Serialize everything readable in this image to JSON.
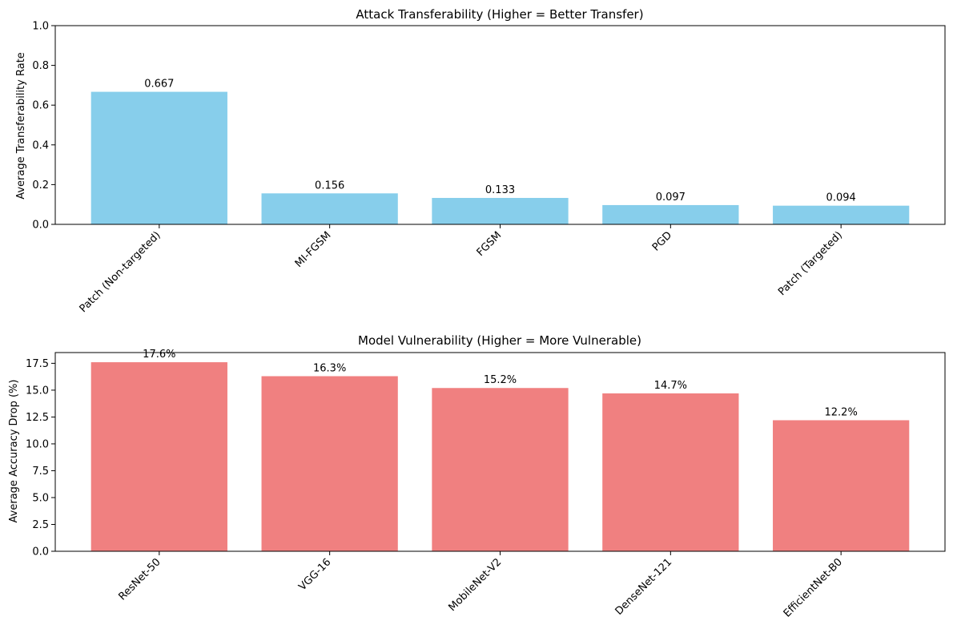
{
  "chart_data": [
    {
      "type": "bar",
      "title": "Attack Transferability (Higher = Better Transfer)",
      "xlabel": "",
      "ylabel": "Average Transferability Rate",
      "categories": [
        "Patch (Non-targeted)",
        "MI-FGSM",
        "FGSM",
        "PGD",
        "Patch (Targeted)"
      ],
      "values": [
        0.667,
        0.156,
        0.133,
        0.097,
        0.094
      ],
      "value_labels": [
        "0.667",
        "0.156",
        "0.133",
        "0.097",
        "0.094"
      ],
      "ylim": [
        0,
        1
      ],
      "yticks": [
        0.0,
        0.2,
        0.4,
        0.6,
        0.8,
        1.0
      ],
      "ytick_labels": [
        "0.0",
        "0.2",
        "0.4",
        "0.6",
        "0.8",
        "1.0"
      ],
      "bar_color": "#87ceeb",
      "grid": false
    },
    {
      "type": "bar",
      "title": "Model Vulnerability (Higher = More Vulnerable)",
      "xlabel": "",
      "ylabel": "Average Accuracy Drop (%)",
      "categories": [
        "ResNet-50",
        "VGG-16",
        "MobileNet-V2",
        "DenseNet-121",
        "EfficientNet-B0"
      ],
      "values": [
        17.6,
        16.3,
        15.2,
        14.7,
        12.2
      ],
      "value_labels": [
        "17.6%",
        "16.3%",
        "15.2%",
        "14.7%",
        "12.2%"
      ],
      "ylim": [
        0,
        18.5
      ],
      "yticks": [
        0.0,
        2.5,
        5.0,
        7.5,
        10.0,
        12.5,
        15.0,
        17.5
      ],
      "ytick_labels": [
        "0.0",
        "2.5",
        "5.0",
        "7.5",
        "10.0",
        "12.5",
        "15.0",
        "17.5"
      ],
      "bar_color": "#f08080",
      "grid": false
    }
  ]
}
